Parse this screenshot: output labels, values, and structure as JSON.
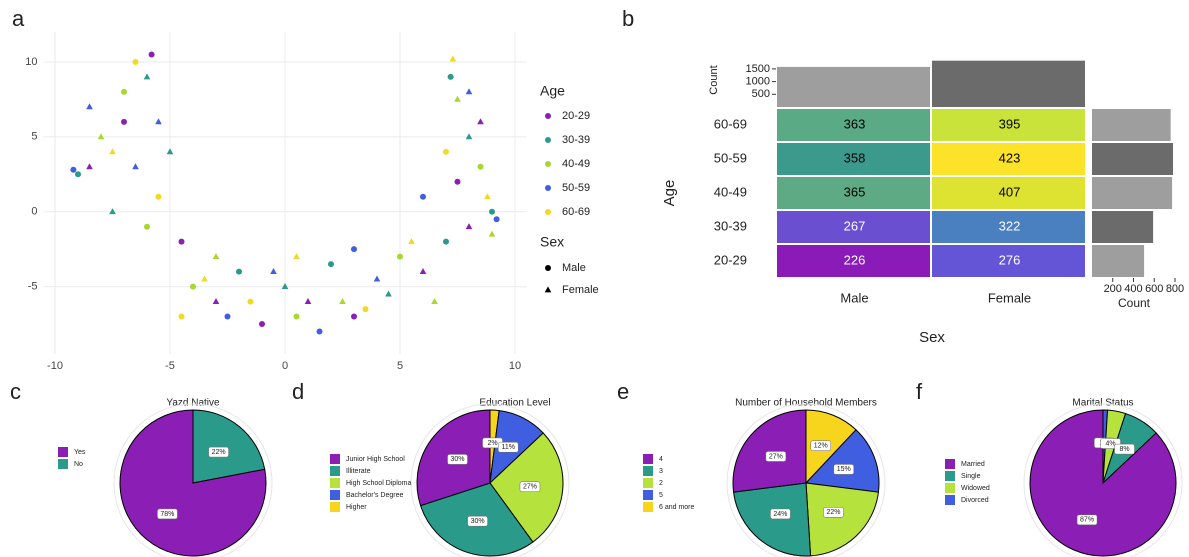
{
  "chart_data": [
    {
      "type": "scatter",
      "panel": "a",
      "xlim": [
        -10.5,
        10.5
      ],
      "xticks": [
        -10,
        -5,
        0,
        5,
        10
      ],
      "ylim": [
        -9.5,
        12
      ],
      "yticks": [
        -5,
        0,
        5,
        10
      ],
      "grid": true,
      "legend_title": "Age",
      "shape_legend": {
        "title": "Sex",
        "names": [
          "Male",
          "Female"
        ]
      },
      "series": [
        {
          "name": "20-29",
          "color": "#8b1eb4",
          "x": [
            -5.8,
            -8.5,
            -7,
            -3,
            -1,
            1,
            3,
            6,
            7.5,
            8.5,
            -4.5,
            8
          ],
          "values": [
            10.5,
            3,
            6,
            -6,
            -7.5,
            -6,
            -7,
            -4,
            2,
            6,
            -2,
            -1
          ],
          "sex": [
            "Male",
            "Female",
            "Male",
            "Female",
            "Male",
            "Female",
            "Male",
            "Female",
            "Male",
            "Female",
            "Male",
            "Female"
          ]
        },
        {
          "name": "30-39",
          "color": "#2a9a8a",
          "x": [
            -6,
            -9,
            -7.5,
            -2,
            0,
            2,
            4.5,
            7,
            8,
            7.2,
            -5,
            9
          ],
          "values": [
            9,
            2.5,
            0,
            -4,
            -5,
            -3.5,
            -5.5,
            -2,
            5,
            9,
            4,
            0
          ],
          "sex": [
            "Female",
            "Male",
            "Female",
            "Male",
            "Female",
            "Male",
            "Female",
            "Male",
            "Female",
            "Male",
            "Female",
            "Male"
          ]
        },
        {
          "name": "40-49",
          "color": "#a6d92f",
          "x": [
            -7,
            -8,
            -6,
            -3,
            0.5,
            2.5,
            5,
            6.5,
            8.5,
            7.5,
            -4,
            9
          ],
          "values": [
            8,
            5,
            -1,
            -3,
            -7,
            -6,
            -3,
            -6,
            3,
            7.5,
            -5,
            -1.5
          ],
          "sex": [
            "Male",
            "Female",
            "Male",
            "Female",
            "Male",
            "Female",
            "Male",
            "Female",
            "Male",
            "Female",
            "Male",
            "Female"
          ]
        },
        {
          "name": "50-59",
          "color": "#3f5ee0",
          "x": [
            -8.5,
            -9.2,
            -6.5,
            -2.5,
            -0.5,
            1.5,
            4,
            6,
            8,
            9.2,
            -5.5,
            3
          ],
          "values": [
            7,
            2.8,
            3,
            -7,
            -4,
            -8,
            -4.5,
            1,
            8,
            -0.5,
            6,
            -2.5
          ],
          "sex": [
            "Female",
            "Male",
            "Female",
            "Male",
            "Female",
            "Male",
            "Female",
            "Male",
            "Female",
            "Male",
            "Female",
            "Male"
          ]
        },
        {
          "name": "60-69",
          "color": "#f2d923",
          "x": [
            -6.5,
            -7.5,
            -5.5,
            -3.5,
            -1.5,
            0.5,
            3.5,
            5.5,
            7,
            8.8,
            -4.5,
            7.3
          ],
          "values": [
            10,
            4,
            1,
            -4.5,
            -6,
            -3,
            -6.5,
            -2,
            4,
            1,
            -7,
            10.2
          ],
          "sex": [
            "Male",
            "Female",
            "Male",
            "Female",
            "Male",
            "Female",
            "Male",
            "Female",
            "Male",
            "Female",
            "Male",
            "Female"
          ]
        }
      ]
    },
    {
      "type": "heatmap",
      "panel": "b",
      "xlabel": "Sex",
      "ylabel": "Age",
      "x_categories": [
        "Male",
        "Female"
      ],
      "y_categories": [
        "20-29",
        "30-39",
        "40-49",
        "50-59",
        "60-69"
      ],
      "values": [
        [
          226,
          276
        ],
        [
          267,
          322
        ],
        [
          365,
          407
        ],
        [
          358,
          423
        ],
        [
          363,
          395
        ]
      ],
      "colors": [
        [
          "#8a1bb8",
          "#6455d6"
        ],
        [
          "#6a4fd0",
          "#4a7fc0"
        ],
        [
          "#5daa85",
          "#dde330"
        ],
        [
          "#3b9a8c",
          "#fde22a"
        ],
        [
          "#5aaa86",
          "#c9e33a"
        ]
      ],
      "label_colors": [
        [
          "#ffffff",
          "#ffffff"
        ],
        [
          "#ffffff",
          "#ffffff"
        ],
        [
          "#000000",
          "#000000"
        ],
        [
          "#000000",
          "#000000"
        ],
        [
          "#000000",
          "#000000"
        ]
      ],
      "x_margin": {
        "label": "Count",
        "values": [
          1579,
          1823
        ],
        "colors": [
          "#9e9e9e",
          "#6b6b6b"
        ],
        "ylim": [
          0,
          1850
        ],
        "yticks": [
          500,
          1000,
          1500
        ]
      },
      "y_margin": {
        "label": "Count",
        "values": [
          502,
          589,
          772,
          781,
          758
        ],
        "colors": [
          "#9e9e9e",
          "#6b6b6b",
          "#9e9e9e",
          "#6b6b6b",
          "#9e9e9e"
        ],
        "xlim": [
          0,
          800
        ],
        "xticks": [
          200,
          400,
          600,
          800
        ]
      }
    },
    {
      "type": "pie",
      "panel": "c",
      "title": "Yazd Native",
      "categories": [
        "Yes",
        "No"
      ],
      "values": [
        78,
        22
      ],
      "value_labels": [
        "78%",
        "22%"
      ],
      "colors": [
        "#8b1eb4",
        "#2a9a8a"
      ]
    },
    {
      "type": "pie",
      "panel": "d",
      "title": "Education Level",
      "categories": [
        "Junior High School",
        "Illiterate",
        "High School Diploma",
        "Bachelor's Degree",
        "Higher"
      ],
      "values": [
        30,
        30,
        27,
        11,
        2
      ],
      "value_labels": [
        "30%",
        "30%",
        "27%",
        "11%",
        "2%"
      ],
      "colors": [
        "#8b1eb4",
        "#2a9a8a",
        "#b5e23c",
        "#3f5ee0",
        "#f7d51d"
      ]
    },
    {
      "type": "pie",
      "panel": "e",
      "title": "Number of Household Members",
      "categories": [
        "4",
        "3",
        "2",
        "5",
        "6 and more"
      ],
      "values": [
        27,
        24,
        22,
        15,
        12
      ],
      "value_labels": [
        "27%",
        "24%",
        "22%",
        "15%",
        "12%"
      ],
      "colors": [
        "#8b1eb4",
        "#2a9a8a",
        "#b5e23c",
        "#3f5ee0",
        "#f7d51d"
      ]
    },
    {
      "type": "pie",
      "panel": "f",
      "title": "Marital Status",
      "categories": [
        "Married",
        "Single",
        "Widowed",
        "Divorced"
      ],
      "values": [
        87,
        8,
        4,
        1
      ],
      "value_labels": [
        "87%",
        "8%",
        "4%",
        "1%"
      ],
      "colors": [
        "#8b1eb4",
        "#2a9a8a",
        "#b5e23c",
        "#3f5ee0"
      ]
    }
  ]
}
